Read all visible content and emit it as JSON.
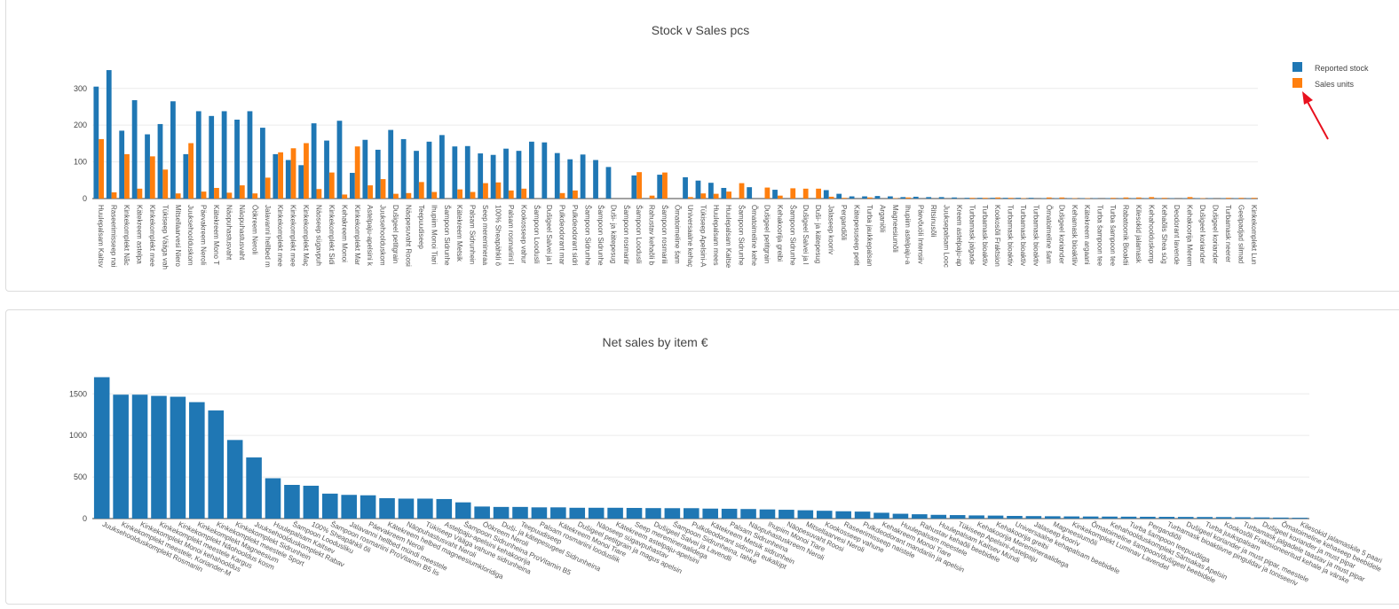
{
  "colors": {
    "stock": "#1f77b4",
    "sales": "#ff7f0e",
    "annotation": "#e8111e",
    "grid": "#ececec"
  },
  "charts": {
    "stock_sales": {
      "title": "Stock v Sales pcs",
      "legend": {
        "stock": "Reported stock",
        "sales": "Sales units"
      },
      "yticks": [
        "0",
        "100",
        "200",
        "300"
      ]
    },
    "net_sales": {
      "title": "Net sales by item €",
      "yticks": [
        "0",
        "500",
        "1000",
        "1500"
      ]
    }
  },
  "chart_data": [
    {
      "type": "bar",
      "title": "Stock v Sales pcs",
      "xlabel": "",
      "ylabel": "",
      "ylim": [
        0,
        355
      ],
      "legend_position": "top-right",
      "categories": [
        "Huulepalsam Kaitsv",
        "Raseerimisseep nai",
        "Kinkekomplekt Nãc",
        "Kätekreem astelpa",
        "Kinkekomplekt mee",
        "Tükiseep Vääga vah",
        "Mitsellaarvesi Niero",
        "Juuksehoolduskom",
        "Päevakreem Neroli",
        "Kätekreem Mono T",
        "Näopuhastusvaht",
        "Näopuhastusvaht",
        "Öökreem Neroli",
        "Jalavanni hellbed m",
        "Kinkekomplekt mee",
        "Kinkekomplekt mee",
        "Kinkekomplekt Maç",
        "Näoseep sügavpuh",
        "Kinkekomplekt Sidi",
        "Kehakreem Monoi",
        "Kinkekomplekt Mar",
        "Astelpaju-apelsini k",
        "Juuksehoolduskom",
        "Dušigeel petitgrain",
        "Näopesuvaht Roosi",
        "Teepuudiseep",
        "Ihupiim Monoi Tiari",
        "Šampoon Sidrunhe",
        "Kätekreem Metsik",
        "Palsam Sidrunhein",
        "Seep meremineraa",
        "100% Sheapähkli õ",
        "Palsam rosmariini l",
        "Kookosseep vahur",
        "Šampoon Loodusli",
        "Dušigeel Salvei ja l",
        "Pulkdeodorant mar",
        "Pulkdeodorant sidri",
        "Šampoon Sidrunhe",
        "Šampoon Sidrunhe",
        "Duši- ja kätepesug",
        "Šampoon rosmariir",
        "Šampoon Loodusli",
        "Rahustav kehaõli b",
        "Šampoon rosmariii",
        "Õmatoimeline šam",
        "Universaalne kehaç",
        "Tükiseep Apelsini-A",
        "Huulepalsam mees",
        "Huulepalsam Kaitse",
        "Šampoon Sidrunhe",
        "Õmatoimeline kehe",
        "Dušigeel petitgrain",
        "Kehakoorija greibi",
        "Šampoon Sidrunhe",
        "Dušigeel Salvei ja l",
        "Duši- ja kätepesug",
        "Jalaseep koorív",
        "Pergandiõli",
        "Kätepesuseep petit",
        "Turba jaukkepalsan",
        "Arganiõli",
        "Magneesiumõli",
        "Ihupiim astelpaju-a",
        "Päevõuöli Intensiiv",
        "Ritsinusõli",
        "Juuksepalsam Looc",
        "Kreem astelpaju-ap",
        "Turbamask jalgade",
        "Turbamask bioaktiv",
        "Kookosõli Fraktsion",
        "Turbamask bioaktiv",
        "Turbamask bioaktiv",
        "Turbamask bioaktiv",
        "Õmatoimeline šam",
        "Dušigeel koriander",
        "Kehamask bioaktiiv",
        "Kätekreem argaani",
        "Turba šampoon tee",
        "Turba šampoon tee",
        "Rabatoonik Bioaktii",
        "Kilesokid jalamask",
        "Kehahoolduskomp",
        "Kehaõlis Shea süg",
        "Deodorant lavende",
        "Kehakoorija Merem",
        "Dušigeel koriander",
        "Dušigeel koriander",
        "Turbamask neerer",
        "Geelpadjad silmad",
        "Kinkekomplekt Lun"
      ],
      "series": [
        {
          "name": "Reported stock",
          "values": [
            305,
            350,
            185,
            268,
            175,
            203,
            265,
            121,
            238,
            225,
            238,
            215,
            238,
            193,
            121,
            105,
            91,
            205,
            158,
            212,
            70,
            160,
            133,
            187,
            162,
            130,
            155,
            173,
            142,
            143,
            123,
            119,
            136,
            130,
            155,
            153,
            124,
            107,
            120,
            105,
            86,
            0,
            63,
            0,
            65,
            0,
            58,
            49,
            43,
            29,
            0,
            31,
            0,
            24,
            0,
            0,
            0,
            23,
            13,
            6,
            6,
            7,
            6,
            4,
            5,
            4,
            4,
            3,
            2,
            2,
            2,
            2,
            2,
            2,
            1,
            1,
            1,
            1,
            1,
            1,
            1,
            1,
            1,
            1,
            1,
            1,
            1,
            1,
            1,
            1,
            1
          ]
        },
        {
          "name": "Sales units",
          "values": [
            162,
            17,
            121,
            27,
            115,
            79,
            14,
            151,
            19,
            29,
            16,
            36,
            14,
            57,
            126,
            137,
            151,
            26,
            71,
            11,
            142,
            36,
            53,
            13,
            15,
            45,
            18,
            0,
            25,
            18,
            42,
            44,
            22,
            27,
            0,
            0,
            15,
            22,
            0,
            0,
            0,
            0,
            72,
            8,
            71,
            0,
            4,
            14,
            13,
            19,
            42,
            0,
            30,
            8,
            28,
            27,
            27,
            5,
            2,
            0,
            3,
            0,
            1,
            3,
            0,
            0,
            0,
            0,
            2,
            2,
            3,
            2,
            1,
            0,
            3,
            3,
            1,
            1,
            0,
            2,
            3,
            3,
            4,
            2,
            0,
            4,
            1,
            0,
            2,
            2,
            2
          ]
        }
      ]
    },
    {
      "type": "bar",
      "title": "Net sales by item €",
      "xlabel": "",
      "ylabel": "",
      "ylim": [
        0,
        1780
      ],
      "categories": [
        "Juuksehoolduskomplekt Rosmariin",
        "Kinkekomplekt meestele, Koriander-M",
        "Kinkekomplekt Monoi kehahooldus",
        "Kinkekomplekt meestele Kargus",
        "Kinkekomplekt Nãohooldus kosm",
        "Kinkekomplekt Magneesium",
        "Kinkekomplekt meestele Sport",
        "Kinkekomplekt Sidrunhein",
        "Juuksehoolduskomplekt Rabav",
        "Huulepalsam Kaitsev",
        "Šampoon Loodusliku",
        "100% Sheapähkli õli",
        "Šampoon rosmariini ProVitamin B5 lis",
        "Jalavanni hellbed mündi meestele",
        "Päevakreem Neroli",
        "Kätekreem helbed magneesiumkloridiga",
        "Näopuhastusvaht Neroli",
        "Tükiseep Vääga vahune sidrunheina",
        "Astelpaju-apelsini kehakoorija",
        "Šampoon Sidrunheina ProVitamin B5",
        "Öökreem Neroli",
        "Duši- ja kätepesugeel Sidrunheina",
        "Teepuudiseep",
        "Palsam rosmariini loodusliik",
        "Kätekreem Monoi Tiare",
        "Dušigeel petitgrain ja magus apelsin",
        "Näoseep sügavpuhastav",
        "Kätekreem astelpaju-apelsini",
        "Seep meremineraalidega",
        "Dušigeel Salvei ja Lavendli",
        "Šampoon Sidrunheina, tahke",
        "Pulkdeodorant sidrun ja eukalüpt",
        "Kätekreem Metsik sidrunhein",
        "Palsam Sidrunheina",
        "Näopuhastuskreem Neroli",
        "Ihupiim Monoi Tiare",
        "Näopesuvaht Roosi",
        "Mitsellaarvesi Neroli",
        "Kookosseep vahune",
        "Raseerimisseep naistele",
        "Pulkdeodorant mandariin ja apelsin",
        "Kehakreem Monoi Tiare",
        "Huulepalsam meestele",
        "Rahustav kehaõli beebidele",
        "Huulepalsam Kaitsev Mündi",
        "Tükiseep Apelsini-Astelpaju",
        "Kehakoorija Meremineraalidega",
        "Kehakoorija greibi",
        "Universaalne kehapalsam beebidele",
        "Jalaseep koorív",
        "Magneesiumõli",
        "Kinkekomplekt Luminav Lavendel",
        "Õmatoimeline šampoon/dušigeel beebidele",
        "Kehahoolduskomplekt Särtsakas Apelsin",
        "Turba šampoon teepuuõliga",
        "Pergandiõli",
        "Turbamask bioaktiivne pinguldav ja toniseeriv",
        "Dušigeel koriander ja must pipar, meestele",
        "Turba juukspalsam",
        "Kookosõli Fraktsioneeritud kehale ja värske",
        "Turbamask jalgadele taastav ja must pipar",
        "Dušigeel koriander ja must pipar",
        "Õmatoimeline kehaseep beebidele",
        "Kilesokid jalamaskile 5 paari"
      ],
      "values": [
        1700,
        1490,
        1490,
        1475,
        1465,
        1400,
        1300,
        945,
        735,
        485,
        405,
        395,
        300,
        285,
        280,
        245,
        240,
        240,
        235,
        195,
        145,
        140,
        140,
        135,
        135,
        130,
        130,
        130,
        128,
        126,
        125,
        125,
        120,
        118,
        115,
        110,
        106,
        100,
        94,
        88,
        84,
        70,
        58,
        52,
        45,
        42,
        38,
        36,
        32,
        30,
        28,
        26,
        25,
        24,
        23,
        22,
        21,
        20,
        19,
        18,
        16,
        14,
        12,
        10
      ]
    }
  ]
}
